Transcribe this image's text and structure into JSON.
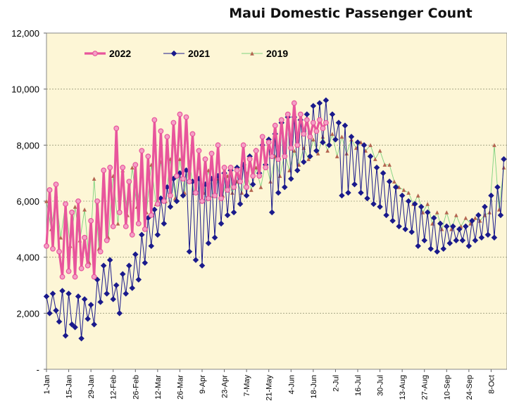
{
  "chart_data": {
    "type": "line",
    "title": "Maui Domestic Passenger Count",
    "xlabel": "",
    "ylabel": "",
    "ylim": [
      0,
      12000
    ],
    "y_ticks": [
      "-",
      "2,000",
      "4,000",
      "6,000",
      "8,000",
      "10,000",
      "12,000"
    ],
    "y_tick_values": [
      0,
      2000,
      4000,
      6000,
      8000,
      10000,
      12000
    ],
    "x_ticks": [
      "1-Jan",
      "15-Jan",
      "29-Jan",
      "12-Feb",
      "26-Feb",
      "12-Mar",
      "26-Mar",
      "9-Apr",
      "23-Apr",
      "7-May",
      "21-May",
      "4-Jun",
      "18-Jun",
      "2-Jul",
      "16-Jul",
      "30-Jul",
      "13-Aug",
      "27-Aug",
      "10-Sep",
      "24-Sep",
      "8-Oct"
    ],
    "x_tick_days": [
      0,
      14,
      28,
      42,
      56,
      70,
      84,
      98,
      112,
      126,
      140,
      154,
      168,
      182,
      196,
      210,
      224,
      238,
      252,
      266,
      280
    ],
    "xlim_days": [
      0,
      290
    ],
    "grid": true,
    "legend_position": "top-left",
    "series": [
      {
        "name": "2022",
        "color": "#e8559c",
        "marker": "circle",
        "x": [
          0,
          2,
          4,
          6,
          8,
          10,
          12,
          14,
          16,
          18,
          20,
          22,
          24,
          26,
          28,
          30,
          32,
          34,
          36,
          38,
          40,
          42,
          44,
          46,
          48,
          50,
          52,
          54,
          56,
          58,
          60,
          62,
          64,
          66,
          68,
          70,
          72,
          74,
          76,
          78,
          80,
          82,
          84,
          86,
          88,
          90,
          92,
          94,
          96,
          98,
          100,
          102,
          104,
          106,
          108,
          110,
          112,
          114,
          116,
          118,
          120,
          122,
          124,
          126,
          128,
          130,
          132,
          134,
          136,
          138,
          140,
          142,
          144,
          146,
          148,
          150,
          152,
          154,
          156,
          158,
          160,
          162,
          164,
          166,
          168,
          170,
          172,
          174,
          176
        ],
        "y": [
          4400,
          6400,
          4300,
          6600,
          4200,
          3300,
          5900,
          3500,
          5600,
          3300,
          6000,
          3600,
          4700,
          3700,
          5300,
          3300,
          6000,
          4200,
          7100,
          4600,
          7200,
          5100,
          8600,
          5600,
          7200,
          5100,
          6700,
          4800,
          7300,
          5200,
          7800,
          5000,
          7600,
          5500,
          8900,
          5900,
          8500,
          6000,
          8300,
          6200,
          8800,
          6900,
          9100,
          6800,
          9000,
          6700,
          8400,
          6300,
          7800,
          6000,
          7500,
          6100,
          7700,
          6200,
          8000,
          6100,
          7200,
          6400,
          7200,
          6500,
          7100,
          6700,
          8000,
          6500,
          7500,
          6900,
          7800,
          6900,
          8300,
          7200,
          8100,
          7600,
          8700,
          7500,
          8900,
          7600,
          9100,
          7900,
          9500,
          8000,
          9100,
          8400,
          8900,
          8300,
          8800,
          8500,
          8900,
          8600,
          8800
        ]
      },
      {
        "name": "2021",
        "color": "#1a1a8c",
        "marker": "diamond",
        "x": [
          0,
          2,
          4,
          6,
          8,
          10,
          12,
          14,
          16,
          18,
          20,
          22,
          24,
          26,
          28,
          30,
          32,
          34,
          36,
          38,
          40,
          42,
          44,
          46,
          48,
          50,
          52,
          54,
          56,
          58,
          60,
          62,
          64,
          66,
          68,
          70,
          72,
          74,
          76,
          78,
          80,
          82,
          84,
          86,
          88,
          90,
          92,
          94,
          96,
          98,
          100,
          102,
          104,
          106,
          108,
          110,
          112,
          114,
          116,
          118,
          120,
          122,
          124,
          126,
          128,
          130,
          132,
          134,
          136,
          138,
          140,
          142,
          144,
          146,
          148,
          150,
          152,
          154,
          156,
          158,
          160,
          162,
          164,
          166,
          168,
          170,
          172,
          174,
          176,
          178,
          180,
          182,
          184,
          186,
          188,
          190,
          192,
          194,
          196,
          198,
          200,
          202,
          204,
          206,
          208,
          210,
          212,
          214,
          216,
          218,
          220,
          222,
          224,
          226,
          228,
          230,
          232,
          234,
          236,
          238,
          240,
          242,
          244,
          246,
          248,
          250,
          252,
          254,
          256,
          258,
          260,
          262,
          264,
          266,
          268,
          270,
          272,
          274,
          276,
          278,
          280,
          282,
          284,
          286,
          288
        ],
        "y": [
          2600,
          2000,
          2700,
          2100,
          1700,
          2800,
          1200,
          2700,
          1600,
          1500,
          2600,
          1100,
          2500,
          1800,
          2300,
          1600,
          3200,
          2400,
          3700,
          2700,
          3900,
          2500,
          3000,
          2000,
          3400,
          2700,
          3700,
          2900,
          4100,
          3200,
          4800,
          3800,
          5400,
          4400,
          5700,
          4800,
          6100,
          5200,
          6500,
          5800,
          6800,
          6000,
          7000,
          6200,
          7100,
          4200,
          6700,
          3900,
          6800,
          3700,
          6600,
          4500,
          6800,
          4700,
          6900,
          5200,
          7000,
          5500,
          7100,
          5600,
          7200,
          5900,
          7300,
          6200,
          7600,
          6600,
          7800,
          7000,
          8000,
          7300,
          8200,
          5600,
          8400,
          6300,
          8800,
          6500,
          9000,
          6800,
          9000,
          7100,
          8900,
          7400,
          9100,
          7600,
          9400,
          7800,
          9500,
          8100,
          9600,
          8000,
          9100,
          8200,
          8800,
          6200,
          8700,
          6300,
          8300,
          6600,
          8100,
          6300,
          8000,
          6100,
          7600,
          5900,
          7200,
          5800,
          7000,
          5500,
          6700,
          5300,
          6500,
          5100,
          6200,
          5000,
          6000,
          4900,
          5900,
          4400,
          5800,
          4600,
          5600,
          4300,
          5400,
          4200,
          5200,
          4300,
          5100,
          4500,
          5100,
          4600,
          5000,
          4600,
          5100,
          4400,
          5300,
          4600,
          5500,
          4700,
          5800,
          4800,
          6200,
          4700,
          6500,
          5500,
          7500
        ]
      },
      {
        "name": "2019",
        "color": "#3cb43c",
        "marker": "triangle",
        "x": [
          0,
          3,
          6,
          9,
          12,
          15,
          18,
          21,
          24,
          27,
          30,
          33,
          36,
          39,
          42,
          45,
          48,
          51,
          54,
          57,
          60,
          63,
          66,
          69,
          72,
          75,
          78,
          81,
          84,
          87,
          90,
          93,
          96,
          99,
          102,
          105,
          108,
          111,
          114,
          117,
          120,
          123,
          126,
          129,
          132,
          135,
          138,
          141,
          144,
          147,
          150,
          153,
          156,
          159,
          162,
          165,
          168,
          171,
          174,
          177,
          180,
          183,
          186,
          189,
          192,
          195,
          198,
          201,
          204,
          207,
          210,
          213,
          216,
          219,
          222,
          225,
          228,
          231,
          234,
          237,
          240,
          243,
          246,
          249,
          252,
          255,
          258,
          261,
          264,
          267,
          270,
          273,
          276,
          279,
          282,
          285,
          288
        ],
        "y": [
          6000,
          5000,
          6200,
          4700,
          5900,
          4400,
          5800,
          4600,
          5700,
          3800,
          6800,
          4300,
          6500,
          4700,
          6900,
          5200,
          7100,
          5500,
          7200,
          5800,
          7000,
          5600,
          7300,
          5900,
          7400,
          6000,
          7500,
          6100,
          7500,
          6300,
          7400,
          6300,
          7200,
          6300,
          7100,
          6200,
          6800,
          6200,
          6900,
          6300,
          6700,
          6300,
          7000,
          6400,
          7200,
          6500,
          7400,
          6700,
          7600,
          6900,
          7700,
          7100,
          7800,
          7300,
          7900,
          7500,
          8200,
          7700,
          8300,
          7800,
          8400,
          7600,
          8300,
          7700,
          8200,
          7900,
          8100,
          7800,
          8000,
          7500,
          7800,
          7300,
          7300,
          6700,
          6500,
          6400,
          6300,
          5900,
          6200,
          5600,
          5900,
          5200,
          5600,
          5000,
          5600,
          5000,
          5500,
          5100,
          5400,
          5200,
          5400,
          5300,
          5500,
          5600,
          8000,
          5700,
          7200
        ]
      }
    ]
  }
}
